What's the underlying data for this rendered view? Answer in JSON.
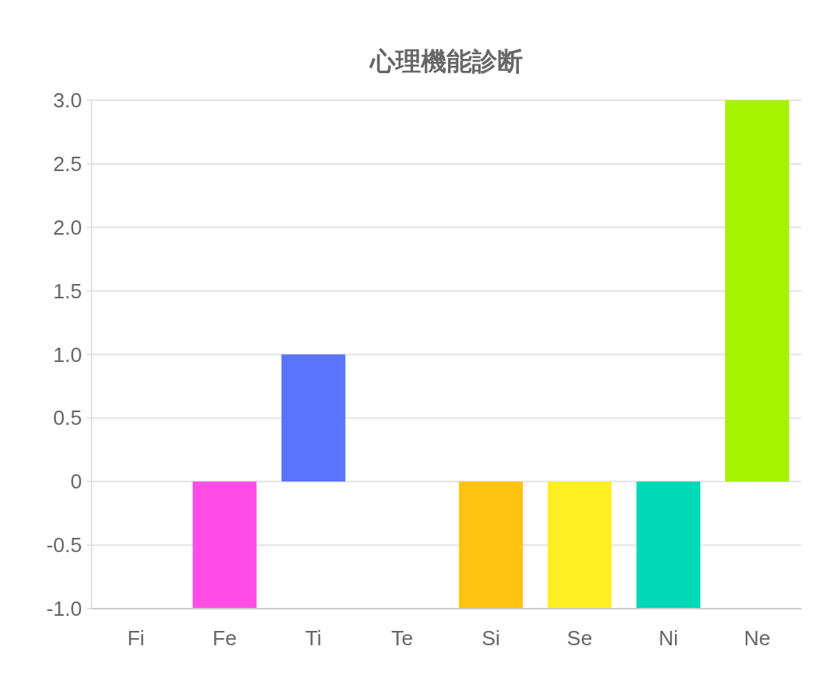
{
  "chart_data": {
    "type": "bar",
    "title": "心理機能診断",
    "categories": [
      "Fi",
      "Fe",
      "Ti",
      "Te",
      "Si",
      "Se",
      "Ni",
      "Ne"
    ],
    "values": [
      0,
      -1,
      1,
      0,
      -1,
      -1,
      -1,
      3
    ],
    "colors": [
      null,
      "#ff4ee6",
      "#5a74ff",
      null,
      "#ffc20f",
      "#ffee22",
      "#00d9b8",
      "#a6f200"
    ],
    "ylim": [
      -1,
      3
    ],
    "yticks": [
      {
        "value": -1,
        "label": "-1.0"
      },
      -0.5,
      0,
      0.5,
      {
        "value": 1,
        "label": "1.0"
      },
      1.5,
      {
        "value": 2,
        "label": "2.0"
      },
      2.5,
      {
        "value": 3,
        "label": "3.0"
      }
    ],
    "grid": "y"
  }
}
